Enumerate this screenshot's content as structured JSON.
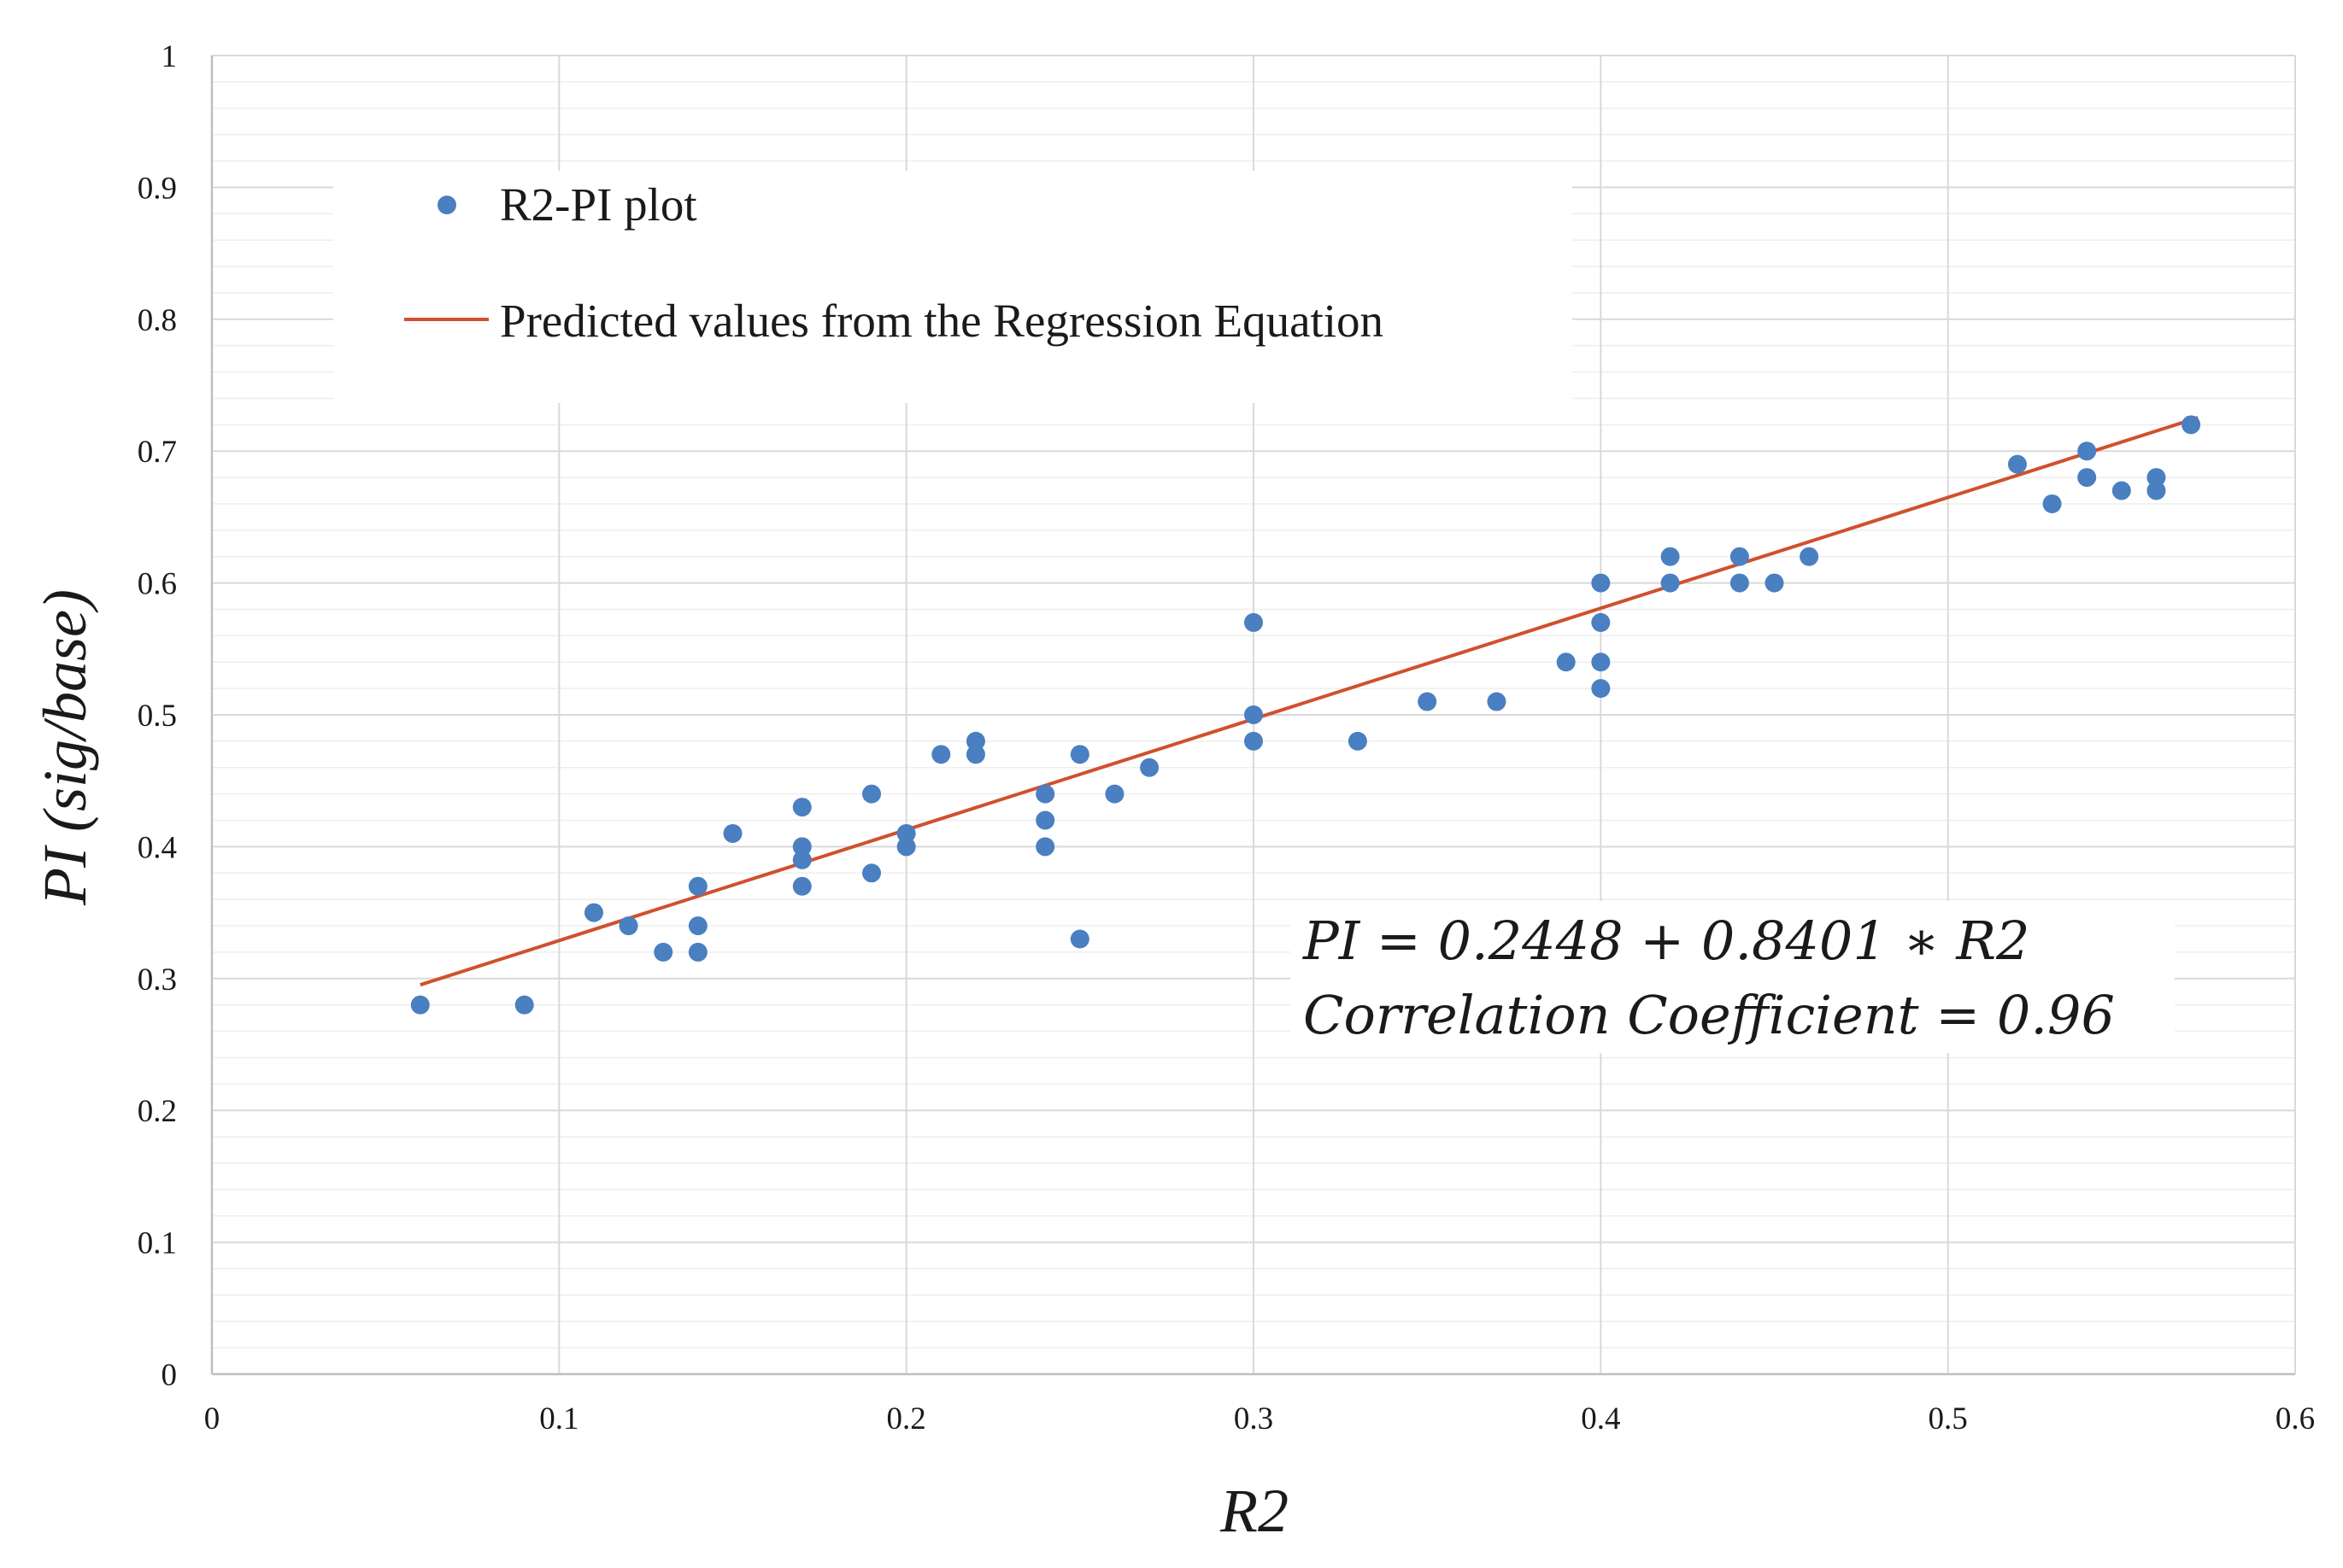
{
  "chart_data": {
    "type": "scatter",
    "xlabel": "R2",
    "ylabel": "PI (sig/base)",
    "xlim": [
      0,
      0.6
    ],
    "ylim": [
      0,
      1
    ],
    "x_ticks": [
      "0",
      "0.1",
      "0.2",
      "0.3",
      "0.4",
      "0.5",
      "0.6"
    ],
    "y_ticks": [
      "0",
      "0.1",
      "0.2",
      "0.3",
      "0.4",
      "0.5",
      "0.6",
      "0.7",
      "0.8",
      "0.9",
      "1"
    ],
    "grid": true,
    "legend_position": "top-left",
    "series": [
      {
        "name": "R2-PI plot",
        "kind": "scatter",
        "color": "#4a7fc1",
        "points": [
          [
            0.06,
            0.28
          ],
          [
            0.09,
            0.28
          ],
          [
            0.11,
            0.35
          ],
          [
            0.12,
            0.34
          ],
          [
            0.13,
            0.32
          ],
          [
            0.14,
            0.37
          ],
          [
            0.14,
            0.34
          ],
          [
            0.14,
            0.32
          ],
          [
            0.15,
            0.41
          ],
          [
            0.17,
            0.43
          ],
          [
            0.17,
            0.4
          ],
          [
            0.17,
            0.39
          ],
          [
            0.17,
            0.37
          ],
          [
            0.19,
            0.44
          ],
          [
            0.19,
            0.38
          ],
          [
            0.2,
            0.41
          ],
          [
            0.2,
            0.4
          ],
          [
            0.21,
            0.47
          ],
          [
            0.22,
            0.48
          ],
          [
            0.22,
            0.47
          ],
          [
            0.24,
            0.44
          ],
          [
            0.24,
            0.42
          ],
          [
            0.24,
            0.4
          ],
          [
            0.25,
            0.47
          ],
          [
            0.25,
            0.33
          ],
          [
            0.26,
            0.44
          ],
          [
            0.27,
            0.46
          ],
          [
            0.3,
            0.57
          ],
          [
            0.3,
            0.5
          ],
          [
            0.3,
            0.48
          ],
          [
            0.33,
            0.48
          ],
          [
            0.35,
            0.51
          ],
          [
            0.37,
            0.51
          ],
          [
            0.39,
            0.54
          ],
          [
            0.4,
            0.6
          ],
          [
            0.4,
            0.57
          ],
          [
            0.4,
            0.54
          ],
          [
            0.4,
            0.52
          ],
          [
            0.42,
            0.62
          ],
          [
            0.42,
            0.6
          ],
          [
            0.44,
            0.62
          ],
          [
            0.44,
            0.6
          ],
          [
            0.45,
            0.6
          ],
          [
            0.46,
            0.62
          ],
          [
            0.52,
            0.69
          ],
          [
            0.53,
            0.66
          ],
          [
            0.54,
            0.7
          ],
          [
            0.54,
            0.68
          ],
          [
            0.55,
            0.67
          ],
          [
            0.56,
            0.68
          ],
          [
            0.56,
            0.67
          ],
          [
            0.57,
            0.72
          ]
        ]
      },
      {
        "name": "Predicted values from the Regression Equation",
        "kind": "line",
        "color": "#d0502e",
        "intercept": 0.2448,
        "slope": 0.8401,
        "x_range": [
          0.06,
          0.572
        ]
      }
    ],
    "annotations": [
      "PI = 0.2448 + 0.8401 ∗ R2",
      "Correlation Coefficient = 0.96"
    ]
  }
}
